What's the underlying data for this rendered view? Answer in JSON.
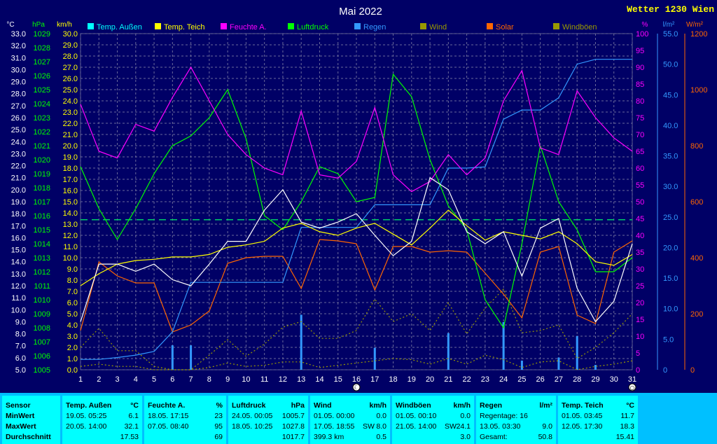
{
  "app_title": "Wetter 1230 Wien",
  "chart_data": {
    "type": "line",
    "title": "Mai 2022",
    "days": [
      1,
      2,
      3,
      4,
      5,
      6,
      7,
      8,
      9,
      10,
      11,
      12,
      13,
      14,
      15,
      16,
      17,
      18,
      19,
      20,
      21,
      22,
      23,
      24,
      25,
      26,
      27,
      28,
      29,
      30,
      31
    ],
    "x_ticks": [
      "1",
      "2",
      "3",
      "4",
      "5",
      "6",
      "7",
      "8",
      "9",
      "10",
      "11",
      "12",
      "13",
      "14",
      "15",
      "16",
      "17",
      "18",
      "19",
      "20",
      "21",
      "22",
      "23",
      "24",
      "25",
      "26",
      "27",
      "28",
      "29",
      "30",
      "31"
    ],
    "axes": {
      "temp_outer": {
        "unit": "°C",
        "ylim": [
          5,
          33
        ],
        "color": "#ffffff",
        "ticks": [
          "5.0",
          "6.0",
          "7.0",
          "8.0",
          "9.0",
          "10.0",
          "11.0",
          "12.0",
          "13.0",
          "14.0",
          "15.0",
          "16.0",
          "17.0",
          "18.0",
          "19.0",
          "20.0",
          "21.0",
          "22.0",
          "23.0",
          "24.0",
          "25.0",
          "26.0",
          "27.0",
          "28.0",
          "29.0",
          "30.0",
          "31.0",
          "32.0",
          "33.0"
        ]
      },
      "pressure": {
        "unit": "hPa",
        "ylim": [
          1005,
          1029
        ],
        "color": "#00ff00",
        "ticks": [
          "1005",
          "1006",
          "1007",
          "1008",
          "1009",
          "1010",
          "1011",
          "1012",
          "1013",
          "1014",
          "1015",
          "1016",
          "1017",
          "1018",
          "1019",
          "1020",
          "1021",
          "1022",
          "1023",
          "1024",
          "1025",
          "1026",
          "1027",
          "1028",
          "1029"
        ]
      },
      "wind": {
        "unit": "km/h",
        "ylim": [
          0,
          30
        ],
        "color": "#ffff00",
        "ticks": [
          "0.0",
          "1.0",
          "2.0",
          "3.0",
          "4.0",
          "5.0",
          "6.0",
          "7.0",
          "8.0",
          "9.0",
          "10.0",
          "11.0",
          "12.0",
          "13.0",
          "14.0",
          "15.0",
          "16.0",
          "17.0",
          "18.0",
          "19.0",
          "20.0",
          "21.0",
          "22.0",
          "23.0",
          "24.0",
          "25.0",
          "26.0",
          "27.0",
          "28.0",
          "29.0",
          "30.0"
        ]
      },
      "humidity": {
        "unit": "%",
        "ylim": [
          0,
          100
        ],
        "color": "#ff00ff",
        "ticks": [
          "0",
          "5",
          "10",
          "15",
          "20",
          "25",
          "30",
          "35",
          "40",
          "45",
          "50",
          "55",
          "60",
          "65",
          "70",
          "75",
          "80",
          "85",
          "90",
          "95",
          "100"
        ]
      },
      "rain": {
        "unit": "l/m²",
        "ylim": [
          0,
          55
        ],
        "color": "#3399ff",
        "ticks": [
          "0",
          "5.0",
          "10.0",
          "15.0",
          "20.0",
          "25.0",
          "30.0",
          "35.0",
          "40.0",
          "45.0",
          "50.0",
          "55.0"
        ]
      },
      "solar": {
        "unit": "W/m²",
        "ylim": [
          0,
          1200
        ],
        "color": "#ff6600",
        "ticks": [
          "0",
          "200",
          "400",
          "600",
          "800",
          "1000",
          "1200"
        ]
      }
    },
    "legend": [
      {
        "label": "Temp. Außen",
        "color": "#00ffff"
      },
      {
        "label": "Temp. Teich",
        "color": "#ffff00"
      },
      {
        "label": "Feuchte A.",
        "color": "#ff00ff"
      },
      {
        "label": "Luftdruck",
        "color": "#00ff00"
      },
      {
        "label": "Regen",
        "color": "#3399ff"
      },
      {
        "label": "Wind",
        "color": "#999900"
      },
      {
        "label": "Solar",
        "color": "#ff6600"
      },
      {
        "label": "Windböen",
        "color": "#999900"
      }
    ],
    "series": [
      {
        "name": "Temp. Außen",
        "axis": "temp_outer",
        "color": "#ffffff",
        "style": "line",
        "values": [
          9.0,
          13.8,
          13.8,
          13.2,
          13.8,
          12.5,
          12.0,
          13.8,
          15.7,
          15.7,
          18.3,
          20.0,
          17.3,
          16.8,
          17.3,
          18.0,
          16.2,
          14.5,
          15.7,
          21.0,
          20.0,
          16.5,
          15.5,
          16.5,
          12.8,
          16.8,
          17.6,
          11.8,
          9.0,
          10.7,
          15.5
        ]
      },
      {
        "name": "Temp. Teich",
        "axis": "temp_outer",
        "color": "#ffff00",
        "style": "line",
        "values": [
          12.0,
          13.0,
          13.8,
          14.1,
          14.2,
          14.4,
          14.4,
          14.6,
          15.2,
          15.4,
          15.7,
          16.8,
          17.2,
          16.5,
          16.2,
          16.8,
          17.2,
          16.3,
          15.4,
          16.8,
          18.3,
          17.0,
          15.8,
          16.5,
          16.2,
          15.9,
          16.5,
          15.5,
          14.0,
          13.7,
          14.6
        ]
      },
      {
        "name": "Feuchte A.",
        "axis": "humidity",
        "color": "#ff00ff",
        "style": "line",
        "values": [
          79,
          65,
          63,
          73,
          71,
          81,
          90,
          80,
          70,
          64,
          60,
          58,
          77,
          58,
          57,
          62,
          78,
          58,
          53,
          56,
          64,
          58,
          63,
          80,
          89,
          66,
          64,
          83,
          75,
          69,
          65
        ]
      },
      {
        "name": "Luftdruck",
        "axis": "pressure",
        "color": "#00ff00",
        "style": "line",
        "values": [
          1019.5,
          1016.5,
          1014.3,
          1016.5,
          1019.0,
          1021.0,
          1021.7,
          1023.0,
          1025.0,
          1021.5,
          1016.0,
          1015.0,
          1017.0,
          1019.5,
          1019.0,
          1017.0,
          1017.3,
          1026.1,
          1024.5,
          1020.0,
          1016.7,
          1015.0,
          1010.0,
          1008.0,
          1014.0,
          1021.0,
          1017.0,
          1015.0,
          1012.0,
          1012.0,
          1013.0
        ]
      },
      {
        "name": "Regen",
        "axis": "rain",
        "color": "#3399ff",
        "style": "line",
        "values": [
          1.7,
          1.7,
          2.0,
          2.4,
          3.0,
          6.2,
          14.3,
          14.3,
          14.3,
          14.3,
          14.3,
          14.3,
          23.3,
          23.3,
          23.3,
          23.3,
          27.0,
          27.0,
          27.0,
          27.0,
          33.0,
          33.0,
          33.2,
          41.0,
          42.5,
          42.5,
          44.5,
          50.0,
          50.8,
          50.8,
          50.8
        ]
      },
      {
        "name": "Solar",
        "axis": "solar",
        "color": "#ff6600",
        "style": "line",
        "values": [
          140,
          385,
          335,
          310,
          310,
          135,
          160,
          210,
          380,
          400,
          405,
          405,
          290,
          465,
          460,
          450,
          285,
          440,
          440,
          420,
          425,
          420,
          345,
          270,
          185,
          420,
          440,
          195,
          165,
          420,
          460
        ]
      },
      {
        "name": "Wind",
        "axis": "wind",
        "color": "#999900",
        "style": "dotted",
        "values": [
          0.3,
          0.5,
          0.3,
          0.3,
          0.0,
          0.0,
          0.0,
          0.2,
          0.6,
          0.3,
          0.4,
          0.7,
          0.7,
          0.2,
          0.4,
          0.6,
          0.8,
          1.0,
          0.9,
          0.5,
          1.0,
          0.5,
          1.3,
          0.9,
          0.2,
          0.7,
          0.8,
          0.0,
          0.3,
          0.5,
          0.8
        ]
      },
      {
        "name": "Windböen",
        "axis": "wind",
        "color": "#999900",
        "style": "dotted",
        "values": [
          2.0,
          3.7,
          1.7,
          1.7,
          0.3,
          0.0,
          0.0,
          1.3,
          2.7,
          1.2,
          2.3,
          3.8,
          4.3,
          2.8,
          2.8,
          3.5,
          6.3,
          4.3,
          5.0,
          3.5,
          6.0,
          3.2,
          5.5,
          7.2,
          3.3,
          3.5,
          4.0,
          1.0,
          2.0,
          3.3,
          5.0
        ]
      }
    ],
    "rain_bars": {
      "axis": "rain",
      "color": "#3399ff",
      "values": [
        0,
        0,
        0,
        0,
        0,
        4.0,
        4.0,
        0,
        0,
        0,
        0,
        0,
        9.0,
        0,
        0,
        0,
        3.6,
        0,
        0,
        0,
        6.0,
        0,
        0,
        7.8,
        1.5,
        0,
        2.0,
        5.5,
        0.8,
        0,
        0
      ]
    },
    "reference_line": {
      "axis": "temp_outer",
      "value": 17.5,
      "color": "#00cc66",
      "style": "dashed"
    },
    "markers": [
      {
        "day": 16,
        "symbol": "☾"
      },
      {
        "day": 31,
        "symbol": "○"
      }
    ]
  },
  "stats": {
    "labels": {
      "title": "Sensor",
      "min": "MinWert",
      "max": "MaxWert",
      "avg": "Durchschnitt"
    },
    "temp": {
      "title": "Temp. Außen",
      "unit": "°C",
      "min_time": "19.05. 05:25",
      "min_val": "6.1",
      "max_time": "20.05. 14:00",
      "max_val": "32.1",
      "avg": "17.53"
    },
    "humidity": {
      "title": "Feuchte A.",
      "unit": "%",
      "min_time": "18.05. 17:15",
      "min_val": "23",
      "max_time": "07.05. 08:40",
      "max_val": "95",
      "avg": "69"
    },
    "pressure": {
      "title": "Luftdruck",
      "unit": "hPa",
      "min_time": "24.05. 00:05",
      "min_val": "1005.7",
      "max_time": "18.05. 10:25",
      "max_val": "1027.8",
      "avg": "1017.7"
    },
    "wind": {
      "title": "Wind",
      "unit": "km/h",
      "min_time": "01.05. 00:00",
      "min_val": "0.0",
      "max_time": "17.05. 18:55",
      "max_dir": "SW",
      "max_val": "8.0",
      "avg_left": "399.3 km",
      "avg": "0.5"
    },
    "gusts": {
      "title": "Windböen",
      "unit": "km/h",
      "min_time": "01.05. 00:10",
      "min_val": "0.0",
      "max_time": "21.05. 14:00",
      "max_dir": "SW",
      "max_val": "24.1",
      "avg": "3.0"
    },
    "rain": {
      "title": "Regen",
      "unit": "l/m²",
      "min_text": "Regentage: 16",
      "max_time": "13.05. 03:30",
      "max_val": "9.0",
      "avg_left": "Gesamt:",
      "avg": "50.8"
    },
    "pond": {
      "title": "Temp. Teich",
      "unit": "°C",
      "min_time": "01.05. 03:45",
      "min_val": "11.7",
      "max_time": "12.05. 17:30",
      "max_val": "18.3",
      "avg": "15.41"
    }
  }
}
